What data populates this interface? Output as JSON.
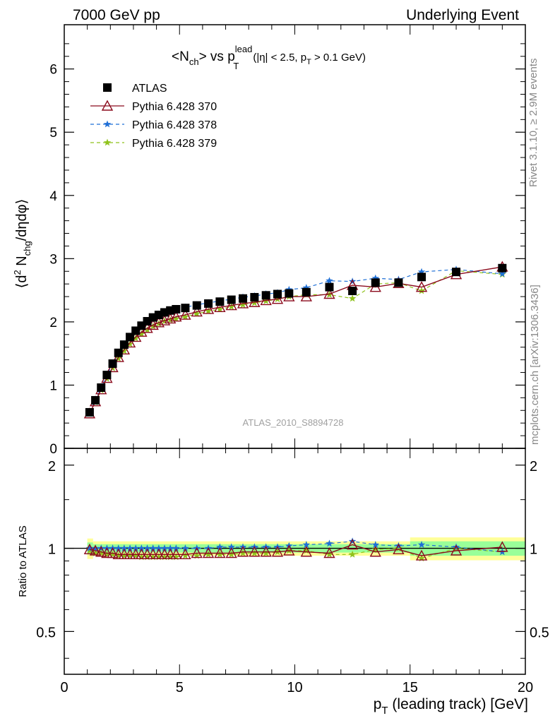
{
  "header": {
    "left": "7000 GeV pp",
    "right": "Underlying Event"
  },
  "side_labels": {
    "rivet": "Rivet 3.1.10, ≥ 2.9M events",
    "mcplots": "mcplots.cern.ch [arXiv:1306.3436]"
  },
  "analysis_id": "ATLAS_2010_S8894728",
  "plot_title": {
    "main": "<N",
    "main_sub": "ch",
    "mid": "> vs p",
    "mid_sup": "lead",
    "mid_sub": "T",
    "cond_a": "(|η| < 2.5, p",
    "cond_sub": "T",
    "cond_b": " > 0.1 GeV)"
  },
  "axes": {
    "ylabel_top_a": "⟨d",
    "ylabel_top_sup": "2",
    "ylabel_top_b": " N",
    "ylabel_top_sub": "chg",
    "ylabel_top_c": "/dηdφ⟩",
    "ylabel_bottom": "Ratio to ATLAS",
    "xlabel_a": "p",
    "xlabel_sub": "T",
    "xlabel_b": " (leading track) [GeV]"
  },
  "colors": {
    "atlas": "#000000",
    "p370": "#8b0b1d",
    "p378": "#1f6fd6",
    "p379": "#8fc21c",
    "band_outer": "#ffff99",
    "band_inner": "#99ff99"
  },
  "chart_data": [
    {
      "type": "scatter",
      "panel": "main",
      "xlim": [
        0,
        20
      ],
      "ylim": [
        0,
        6.7
      ],
      "yticks": [
        0,
        1,
        2,
        3,
        4,
        5,
        6
      ],
      "xticks": [
        0,
        5,
        10,
        15,
        20
      ],
      "x": [
        1.1,
        1.35,
        1.6,
        1.85,
        2.1,
        2.35,
        2.6,
        2.85,
        3.1,
        3.35,
        3.6,
        3.85,
        4.1,
        4.35,
        4.6,
        4.85,
        5.25,
        5.75,
        6.25,
        6.75,
        7.25,
        7.75,
        8.25,
        8.75,
        9.25,
        9.75,
        10.5,
        11.5,
        12.5,
        13.5,
        14.5,
        15.5,
        17.0,
        19.0
      ],
      "legend": [
        {
          "key": "atlas",
          "label": "ATLAS"
        },
        {
          "key": "p370",
          "label": "Pythia 6.428 370"
        },
        {
          "key": "p378",
          "label": "Pythia 6.428 378"
        },
        {
          "key": "p379",
          "label": "Pythia 6.428 379"
        }
      ],
      "series": [
        {
          "key": "atlas",
          "name": "ATLAS",
          "style": "square",
          "values": [
            0.57,
            0.76,
            0.96,
            1.16,
            1.34,
            1.51,
            1.64,
            1.76,
            1.86,
            1.94,
            2.01,
            2.07,
            2.11,
            2.15,
            2.18,
            2.2,
            2.22,
            2.26,
            2.29,
            2.32,
            2.35,
            2.37,
            2.39,
            2.42,
            2.44,
            2.45,
            2.47,
            2.55,
            2.49,
            2.62,
            2.62,
            2.71,
            2.79,
            2.85
          ]
        },
        {
          "key": "p370",
          "name": "Pythia 6.428 370",
          "style": "triangle",
          "values": [
            0.55,
            0.74,
            0.93,
            1.11,
            1.28,
            1.44,
            1.56,
            1.67,
            1.76,
            1.84,
            1.9,
            1.95,
            1.99,
            2.02,
            2.05,
            2.08,
            2.11,
            2.16,
            2.2,
            2.23,
            2.26,
            2.29,
            2.31,
            2.34,
            2.36,
            2.4,
            2.4,
            2.44,
            2.58,
            2.55,
            2.61,
            2.55,
            2.75,
            2.87
          ]
        },
        {
          "key": "p378",
          "name": "Pythia 6.428 378",
          "style": "star-dashed",
          "values": [
            0.57,
            0.76,
            0.96,
            1.16,
            1.34,
            1.5,
            1.64,
            1.75,
            1.85,
            1.93,
            2.0,
            2.06,
            2.1,
            2.14,
            2.17,
            2.2,
            2.23,
            2.27,
            2.3,
            2.33,
            2.36,
            2.39,
            2.41,
            2.44,
            2.46,
            2.51,
            2.54,
            2.65,
            2.64,
            2.69,
            2.67,
            2.79,
            2.83,
            2.76
          ]
        },
        {
          "key": "p379",
          "name": "Pythia 6.428 379",
          "style": "star-dashed",
          "values": [
            0.56,
            0.73,
            0.92,
            1.1,
            1.27,
            1.42,
            1.54,
            1.65,
            1.74,
            1.81,
            1.87,
            1.93,
            1.97,
            2.01,
            2.03,
            2.05,
            2.08,
            2.13,
            2.17,
            2.2,
            2.24,
            2.27,
            2.3,
            2.33,
            2.36,
            2.4,
            2.43,
            2.43,
            2.37,
            2.6,
            2.62,
            2.49,
            2.81,
            2.75
          ]
        }
      ]
    },
    {
      "type": "line",
      "panel": "ratio",
      "xlim": [
        0,
        20
      ],
      "ylim": [
        0.35,
        2.3
      ],
      "ylog": true,
      "yticks": [
        0.5,
        1,
        2
      ],
      "x": [
        1.1,
        1.35,
        1.6,
        1.85,
        2.1,
        2.35,
        2.6,
        2.85,
        3.1,
        3.35,
        3.6,
        3.85,
        4.1,
        4.35,
        4.6,
        4.85,
        5.25,
        5.75,
        6.25,
        6.75,
        7.25,
        7.75,
        8.25,
        8.75,
        9.25,
        9.75,
        10.5,
        11.5,
        12.5,
        13.5,
        14.5,
        15.5,
        17.0,
        19.0
      ],
      "bands": {
        "edges": [
          1.0,
          1.25,
          15.0,
          20.0
        ],
        "outer": [
          0.085,
          0.06,
          0.095
        ],
        "inner": [
          0.05,
          0.035,
          0.06
        ]
      },
      "series": [
        {
          "key": "p370",
          "name": "Pythia 6.428 370",
          "style": "triangle",
          "values": [
            0.99,
            0.98,
            0.97,
            0.96,
            0.96,
            0.95,
            0.95,
            0.95,
            0.95,
            0.95,
            0.95,
            0.95,
            0.95,
            0.95,
            0.95,
            0.95,
            0.95,
            0.96,
            0.96,
            0.96,
            0.96,
            0.97,
            0.97,
            0.97,
            0.97,
            0.98,
            0.97,
            0.96,
            1.03,
            0.97,
            0.99,
            0.94,
            0.98,
            1.01
          ]
        },
        {
          "key": "p378",
          "name": "Pythia 6.428 378",
          "style": "star-dashed",
          "values": [
            1.0,
            1.0,
            1.0,
            1.0,
            1.0,
            1.0,
            1.0,
            1.0,
            1.0,
            1.0,
            1.0,
            1.0,
            1.0,
            1.0,
            1.0,
            1.0,
            1.0,
            1.0,
            1.0,
            1.01,
            1.01,
            1.01,
            1.01,
            1.01,
            1.01,
            1.02,
            1.03,
            1.04,
            1.06,
            1.03,
            1.02,
            1.03,
            1.01,
            0.97
          ]
        },
        {
          "key": "p379",
          "name": "Pythia 6.428 379",
          "style": "star-dashed",
          "values": [
            0.98,
            0.96,
            0.96,
            0.95,
            0.95,
            0.94,
            0.94,
            0.94,
            0.94,
            0.93,
            0.93,
            0.93,
            0.93,
            0.93,
            0.93,
            0.93,
            0.94,
            0.94,
            0.95,
            0.95,
            0.95,
            0.96,
            0.96,
            0.96,
            0.97,
            0.98,
            0.98,
            0.95,
            0.95,
            0.99,
            1.0,
            0.92,
            1.0,
            0.97
          ]
        }
      ]
    }
  ]
}
